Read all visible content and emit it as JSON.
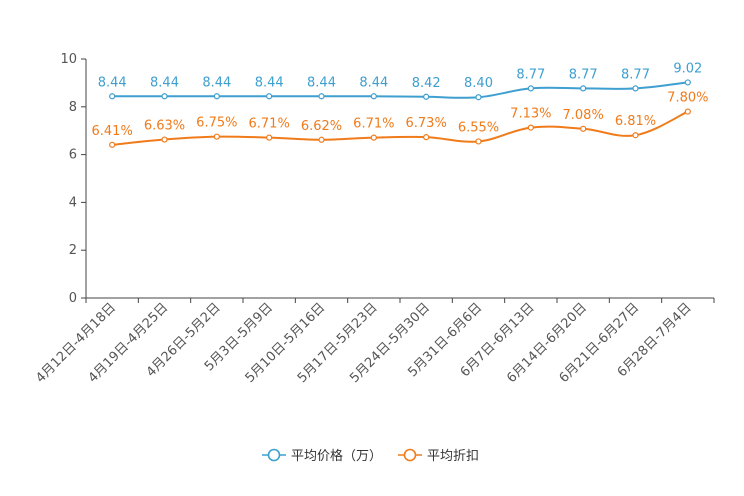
{
  "chart_data": {
    "type": "line",
    "title": "",
    "xlabel": "",
    "ylabel": "",
    "ylim": [
      0,
      10
    ],
    "yticks": [
      0,
      2,
      4,
      6,
      8,
      10
    ],
    "grid": false,
    "legend_position": "bottom-center",
    "categories": [
      "4月12日-4月18日",
      "4月19日-4月25日",
      "4月26日-5月2日",
      "5月3日-5月9日",
      "5月10日-5月16日",
      "5月17日-5月23日",
      "5月24日-5月30日",
      "5月31日-6月6日",
      "6月7日-6月13日",
      "6月14日-6月20日",
      "6月21日-6月27日",
      "6月28日-7月4日"
    ],
    "series": [
      {
        "name": "平均价格（万）",
        "color": "#3e9fd0",
        "values": [
          8.44,
          8.44,
          8.44,
          8.44,
          8.44,
          8.44,
          8.42,
          8.4,
          8.77,
          8.77,
          8.77,
          9.02
        ],
        "labels": [
          "8.44",
          "8.44",
          "8.44",
          "8.44",
          "8.44",
          "8.44",
          "8.42",
          "8.40",
          "8.77",
          "8.77",
          "8.77",
          "9.02"
        ]
      },
      {
        "name": "平均折扣",
        "color": "#f07b1b",
        "values": [
          6.41,
          6.63,
          6.75,
          6.71,
          6.62,
          6.71,
          6.73,
          6.55,
          7.13,
          7.08,
          6.81,
          7.8
        ],
        "labels": [
          "6.41%",
          "6.63%",
          "6.75%",
          "6.71%",
          "6.62%",
          "6.71%",
          "6.73%",
          "6.55%",
          "7.13%",
          "7.08%",
          "6.81%",
          "7.80%"
        ]
      }
    ]
  }
}
